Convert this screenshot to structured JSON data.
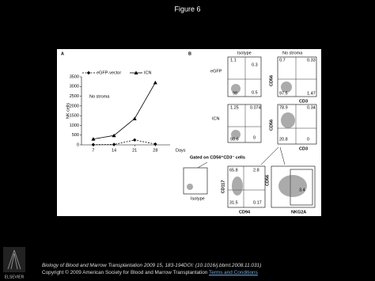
{
  "header": {
    "title": "Figure 6"
  },
  "chart_data": {
    "type": "line",
    "panel": "A",
    "y_label": "NK cells",
    "x_label": "Days",
    "annotation": "No stroma",
    "x": [
      7,
      14,
      21,
      28
    ],
    "xlim": [
      3,
      33
    ],
    "xticks": [
      7,
      14,
      21,
      28
    ],
    "ylim": [
      0,
      3500
    ],
    "yticks": [
      0,
      500,
      1000,
      1500,
      2000,
      2500,
      3000,
      3500
    ],
    "series": [
      {
        "name": "eGFP-vector",
        "color": "#000000",
        "marker": "diamond",
        "dashed": true,
        "values": [
          10,
          20,
          250,
          40
        ]
      },
      {
        "name": "ICN",
        "color": "#000000",
        "marker": "triangle",
        "dashed": false,
        "values": [
          300,
          480,
          1350,
          3200
        ]
      }
    ]
  },
  "panel_b": {
    "label": "B",
    "columns": [
      "Isotype",
      "No stroma"
    ],
    "rows": [
      "eGFP",
      "ICN"
    ],
    "axis_labels": [
      "CD56",
      "CD3",
      "CD56",
      "CD3"
    ],
    "plots": [
      {
        "ul": "1.1",
        "ur": "0.3",
        "ll": "98",
        "lr": "0.5"
      },
      {
        "ul": "0.7",
        "ur": "0.33",
        "ll": "97.5",
        "lr": "1.47"
      },
      {
        "ul": "1.25",
        "ur": "0.074",
        "ll": "98.6",
        "lr": "0"
      },
      {
        "ul": "78.9",
        "ur": "0.34",
        "ll": "20.8",
        "lr": "0"
      }
    ],
    "gate": "Gated on CD56⁺CD3⁻ cells",
    "bottom": {
      "isotype": "Isotype",
      "axis_labels": [
        "CD117",
        "CD94",
        "CD56",
        "NKG2A"
      ],
      "plots": [
        {
          "ul": "65.8",
          "ur": "2.8",
          "ll": "31.5",
          "lr": "0.17"
        },
        {
          "value": "3.4"
        }
      ]
    }
  },
  "footer": {
    "publisher": "ELSEVIER",
    "citation": "Biology of Blood and Marrow Transplantation 2009 15, 183-194DOI: (10.1016/j.bbmt.2008.11.031)",
    "copyright": "Copyright © 2009 American Society for Blood and Marrow Transplantation",
    "terms": "Terms and Conditions"
  }
}
